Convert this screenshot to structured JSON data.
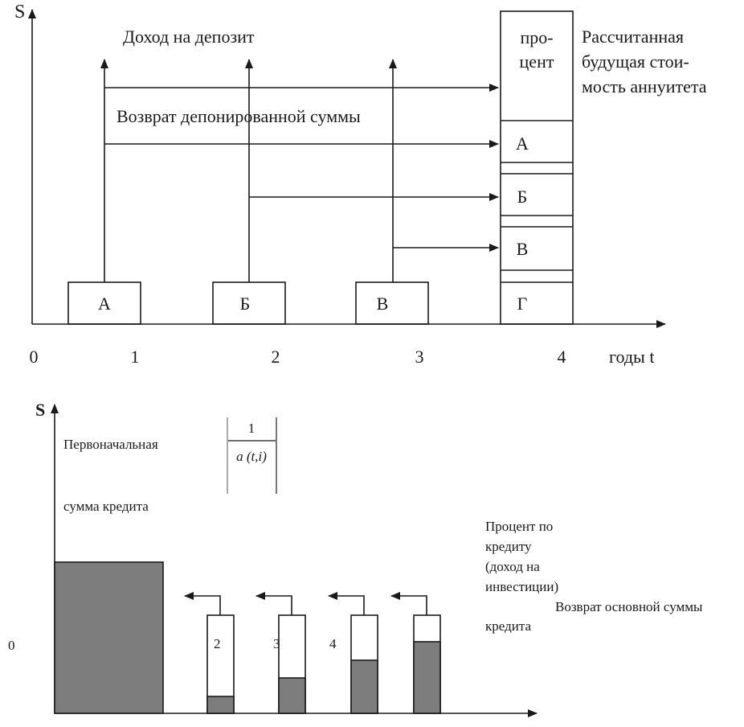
{
  "top": {
    "axis_y": "S",
    "axis_x": "годы t",
    "ticks": [
      "0",
      "1",
      "2",
      "3",
      "4"
    ],
    "income_label": "Доход на депозит",
    "return_label": "Возврат депонированной суммы",
    "percent_line1": "про-",
    "percent_line2": "цент",
    "future_line1": "Рассчитанная",
    "future_line2": "будущая стои-",
    "future_line3": "мость аннуитета",
    "deposits": [
      "А",
      "Б",
      "В"
    ],
    "stack": [
      "А",
      "Б",
      "В",
      "Г"
    ]
  },
  "bottom": {
    "axis_y": "S",
    "zero": "0",
    "initial_line1": "Первоначальная",
    "initial_line2": "сумма кредита",
    "fraction_num": "1",
    "fraction_den": "a (t,i)",
    "interest_line1": "Процент по",
    "interest_line2": "кредиту",
    "interest_line3": "(доход на",
    "interest_line4": "инвестиции)",
    "principal_line1": "Возврат основной суммы",
    "principal_line2": "кредита",
    "bar_labels": [
      "2",
      "3",
      "4"
    ],
    "colors": {
      "fill": "#7d7d7d",
      "stroke": "#1a1a1a"
    }
  }
}
